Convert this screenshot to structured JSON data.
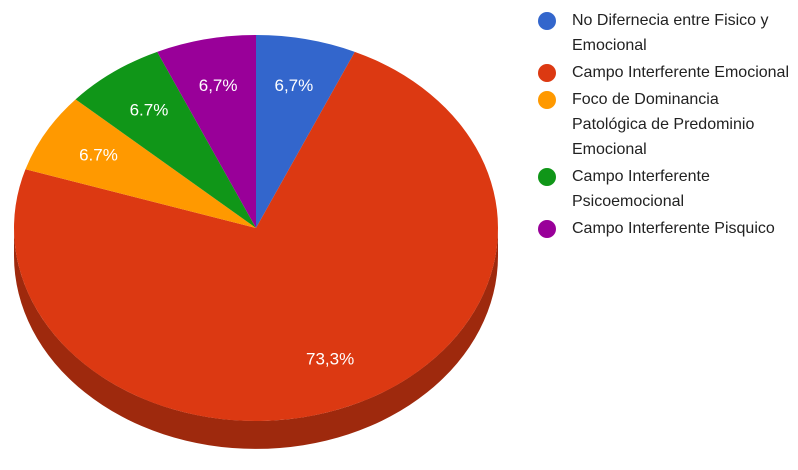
{
  "chart_data": {
    "type": "pie",
    "categories": [
      "No Difernecia entre Fisico y Emocional",
      "Campo Interferente Emocional",
      "Foco de Dominancia Patológica de Predominio Emocional",
      "Campo Interferente Psicoemocional",
      "Campo Interferente Pisquico"
    ],
    "values": [
      6.7,
      73.3,
      6.7,
      6.7,
      6.7
    ],
    "value_labels": [
      "6,7%",
      "73,3%",
      "6.7%",
      "6.7%",
      "6,7%"
    ],
    "colors": [
      "#3366cc",
      "#dc3912",
      "#ff9900",
      "#109618",
      "#990099"
    ],
    "legend": "right"
  }
}
